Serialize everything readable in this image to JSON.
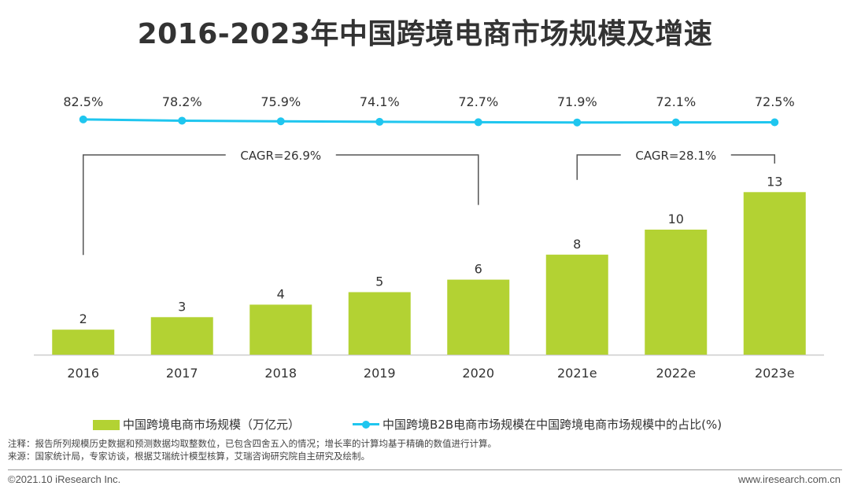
{
  "title": "2016-2023年中国跨境电商市场规模及增速",
  "colors": {
    "bar": "#b3d233",
    "line": "#1fc6ef",
    "axis": "#cccccc",
    "bracket": "#555555",
    "text": "#333333"
  },
  "chart_data": {
    "type": "bar",
    "title": "2016-2023年中国跨境电商市场规模及增速",
    "categories": [
      "2016",
      "2017",
      "2018",
      "2019",
      "2020",
      "2021e",
      "2022e",
      "2023e"
    ],
    "series": [
      {
        "name": "中国跨境电商市场规模（万亿元）",
        "type": "bar",
        "values": [
          2,
          3,
          4,
          5,
          6,
          8,
          10,
          13
        ],
        "labels": [
          "2",
          "3",
          "4",
          "5",
          "6",
          "8",
          "10",
          "13"
        ]
      },
      {
        "name": "中国跨境B2B电商市场规模在中国跨境电商市场规模中的占比(%)",
        "type": "line",
        "values": [
          82.5,
          78.2,
          75.9,
          74.1,
          72.7,
          71.9,
          72.1,
          72.5
        ],
        "labels": [
          "82.5%",
          "78.2%",
          "75.9%",
          "74.1%",
          "72.7%",
          "71.9%",
          "72.1%",
          "72.5%"
        ]
      }
    ],
    "ylim": [
      0,
      14
    ],
    "line_ylim": [
      0,
      100
    ],
    "annotations": [
      {
        "text": "CAGR=26.9%",
        "from": "2016",
        "to": "2020"
      },
      {
        "text": "CAGR=28.1%",
        "from": "2021e",
        "to": "2023e"
      }
    ]
  },
  "legend": {
    "bar_label": "中国跨境电商市场规模（万亿元）",
    "line_label": "中国跨境B2B电商市场规模在中国跨境电商市场规模中的占比(%)"
  },
  "notes": {
    "note": "注释：报告所列规模历史数据和预测数据均取整数位，已包含四舍五入的情况；增长率的计算均基于精确的数值进行计算。",
    "source": "来源：国家统计局，专家访谈，根据艾瑞统计模型核算，艾瑞咨询研究院自主研究及绘制。"
  },
  "footer": {
    "copyright": "©2021.10 iResearch Inc.",
    "website": "www.iresearch.com.cn"
  }
}
